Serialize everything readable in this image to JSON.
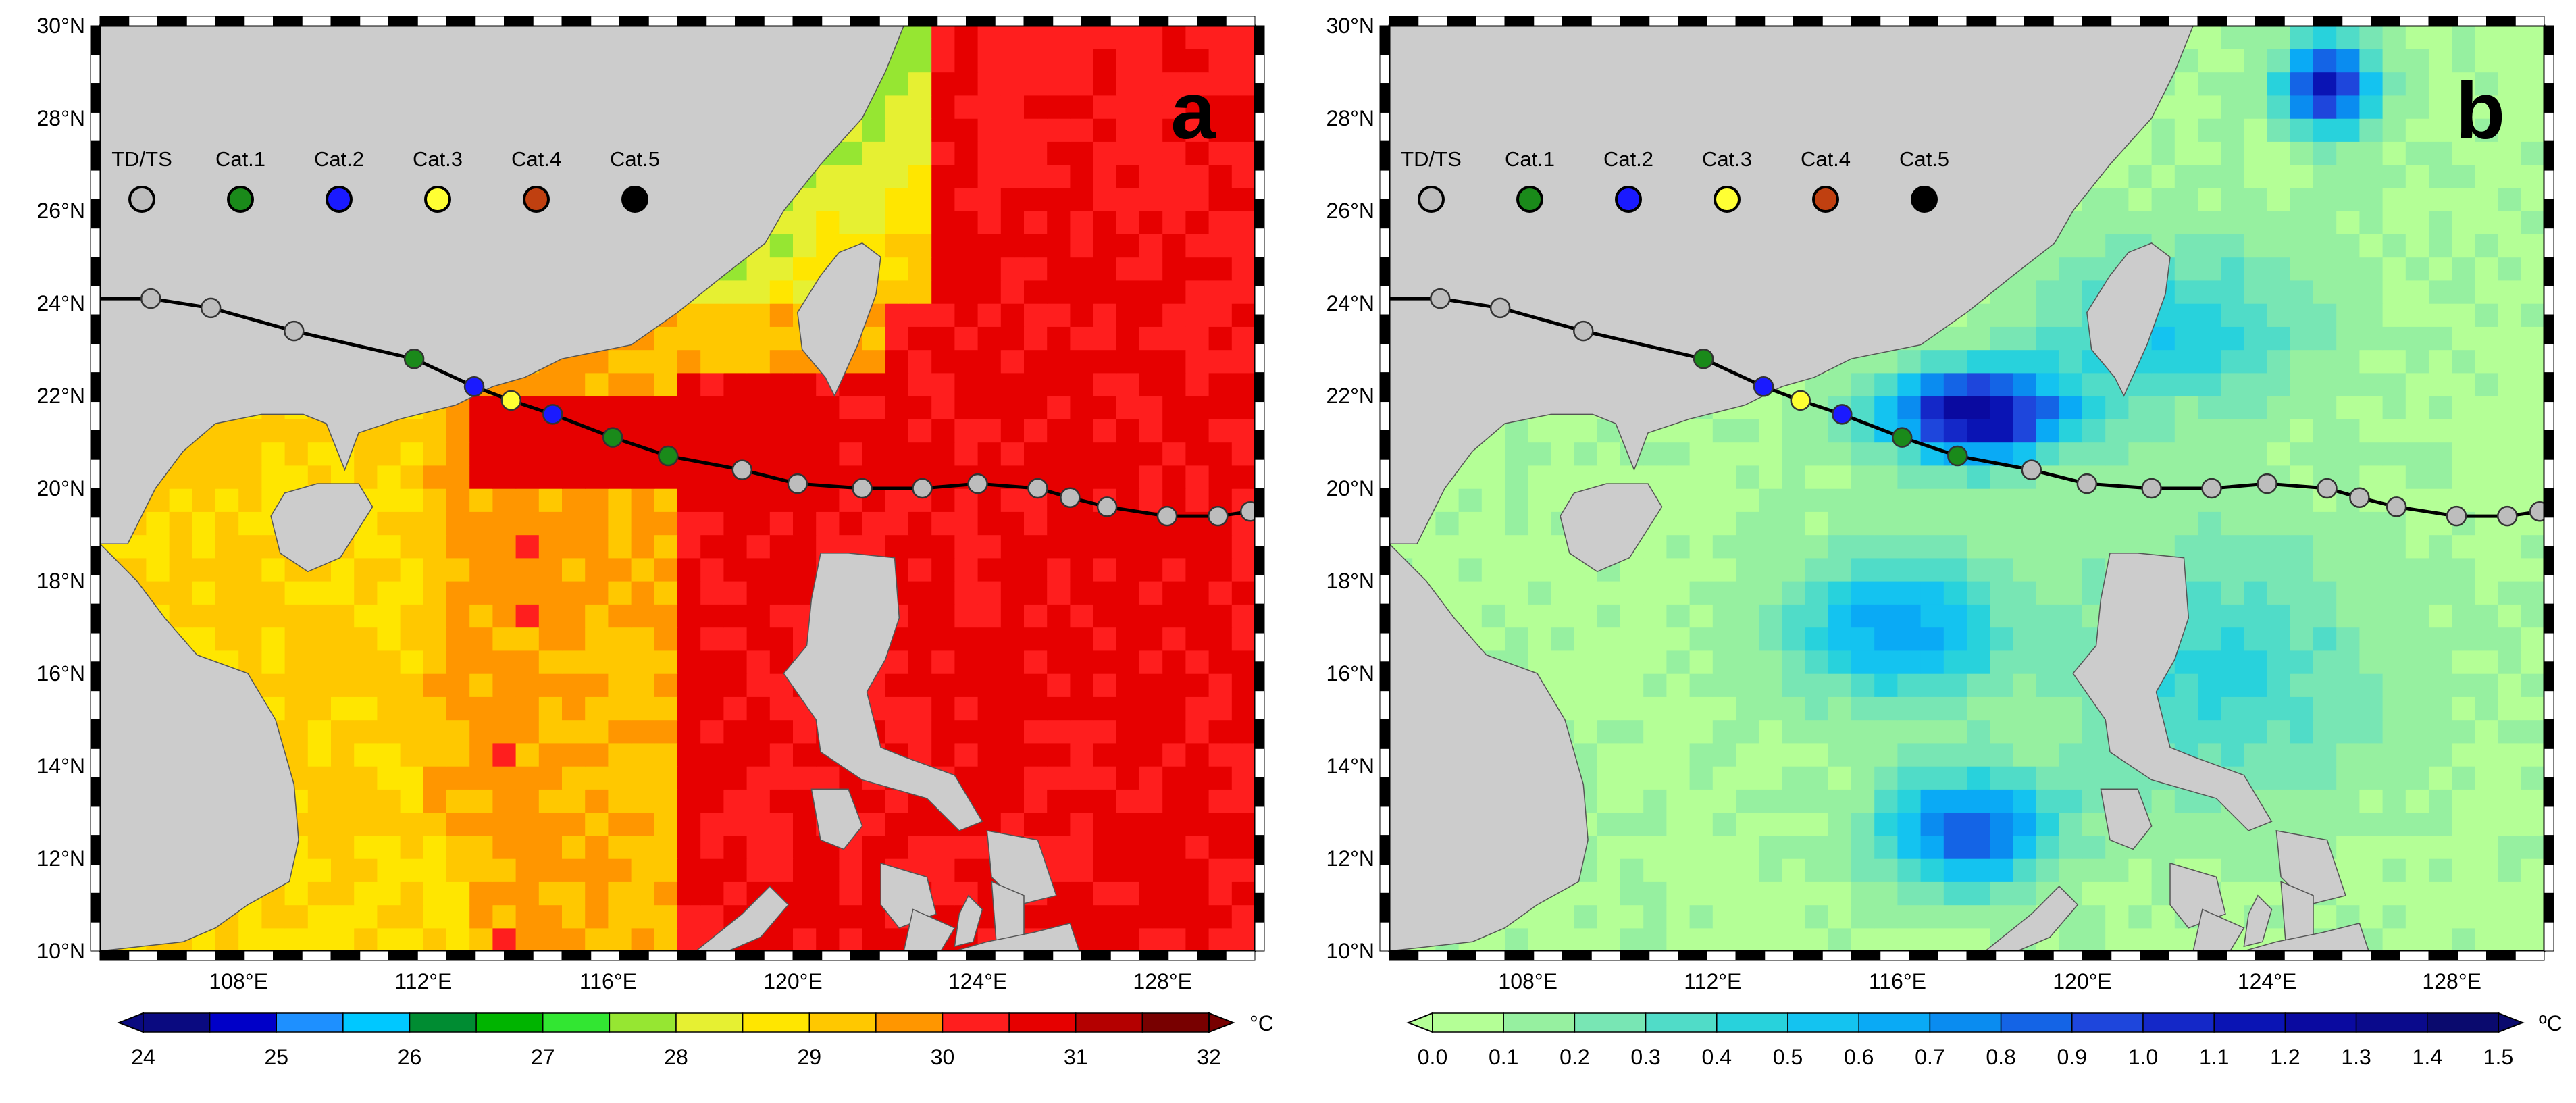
{
  "panels": [
    {
      "id": "a",
      "label": "a",
      "colorbar": {
        "ticks": [
          "24",
          "25",
          "26",
          "27",
          "28",
          "29",
          "30",
          "31",
          "32"
        ],
        "unit": "°C",
        "colors": [
          "#0a0a80",
          "#0000c8",
          "#1e90ff",
          "#00c8ff",
          "#008c32",
          "#00b400",
          "#32e632",
          "#96e632",
          "#e6f032",
          "#ffe600",
          "#ffc800",
          "#ff9600",
          "#ff1e1e",
          "#e60000",
          "#b40000",
          "#780000"
        ]
      },
      "field_type": "sst"
    },
    {
      "id": "b",
      "label": "b",
      "colorbar": {
        "ticks": [
          "0.0",
          "0.1",
          "0.2",
          "0.3",
          "0.4",
          "0.5",
          "0.6",
          "0.7",
          "0.8",
          "0.9",
          "1.0",
          "1.1",
          "1.2",
          "1.3",
          "1.4",
          "1.5"
        ],
        "unit": "ºC",
        "colors": [
          "#b4ff96",
          "#96f0a0",
          "#78e6b4",
          "#50dcc8",
          "#28d2dc",
          "#14c3f0",
          "#0aaaf5",
          "#0a8cf0",
          "#1464e6",
          "#1e46dc",
          "#1428c8",
          "#0a14b4",
          "#0a0aa0",
          "#0a0a8c",
          "#0a0a6e"
        ]
      },
      "field_type": "cooling"
    }
  ],
  "axes": {
    "lat_labels": [
      "30°N",
      "28°N",
      "26°N",
      "24°N",
      "22°N",
      "20°N",
      "18°N",
      "16°N",
      "14°N",
      "12°N",
      "10°N"
    ],
    "lon_labels": [
      "108°E",
      "112°E",
      "116°E",
      "120°E",
      "124°E",
      "128°E"
    ],
    "lat_values": [
      30,
      28,
      26,
      24,
      22,
      20,
      18,
      16,
      14,
      12,
      10
    ],
    "lon_values": [
      108,
      112,
      116,
      120,
      124,
      128
    ],
    "lon_range": [
      105,
      130
    ],
    "lat_range": [
      10,
      30
    ]
  },
  "legend": {
    "items": [
      {
        "label": "TD/TS",
        "color": "#bdbdbd"
      },
      {
        "label": "Cat.1",
        "color": "#1a8a1a"
      },
      {
        "label": "Cat.2",
        "color": "#1a1aff"
      },
      {
        "label": "Cat.3",
        "color": "#ffff33"
      },
      {
        "label": "Cat.4",
        "color": "#c04010"
      },
      {
        "label": "Cat.5",
        "color": "#000000"
      }
    ]
  },
  "track": [
    {
      "lon": 106.1,
      "lat": 24.1,
      "cat": "TD/TS"
    },
    {
      "lon": 107.4,
      "lat": 23.9,
      "cat": "TD/TS"
    },
    {
      "lon": 109.2,
      "lat": 23.4,
      "cat": "TD/TS"
    },
    {
      "lon": 111.8,
      "lat": 22.8,
      "cat": "Cat.1"
    },
    {
      "lon": 113.1,
      "lat": 22.2,
      "cat": "Cat.2"
    },
    {
      "lon": 113.9,
      "lat": 21.9,
      "cat": "Cat.3"
    },
    {
      "lon": 114.8,
      "lat": 21.6,
      "cat": "Cat.2"
    },
    {
      "lon": 116.1,
      "lat": 21.1,
      "cat": "Cat.1"
    },
    {
      "lon": 117.3,
      "lat": 20.7,
      "cat": "Cat.1"
    },
    {
      "lon": 118.9,
      "lat": 20.4,
      "cat": "TD/TS"
    },
    {
      "lon": 120.1,
      "lat": 20.1,
      "cat": "TD/TS"
    },
    {
      "lon": 121.5,
      "lat": 20.0,
      "cat": "TD/TS"
    },
    {
      "lon": 122.8,
      "lat": 20.0,
      "cat": "TD/TS"
    },
    {
      "lon": 124.0,
      "lat": 20.1,
      "cat": "TD/TS"
    },
    {
      "lon": 125.3,
      "lat": 20.0,
      "cat": "TD/TS"
    },
    {
      "lon": 126.0,
      "lat": 19.8,
      "cat": "TD/TS"
    },
    {
      "lon": 126.8,
      "lat": 19.6,
      "cat": "TD/TS"
    },
    {
      "lon": 128.1,
      "lat": 19.4,
      "cat": "TD/TS"
    },
    {
      "lon": 129.2,
      "lat": 19.4,
      "cat": "TD/TS"
    },
    {
      "lon": 129.9,
      "lat": 19.5,
      "cat": "TD/TS"
    }
  ]
}
